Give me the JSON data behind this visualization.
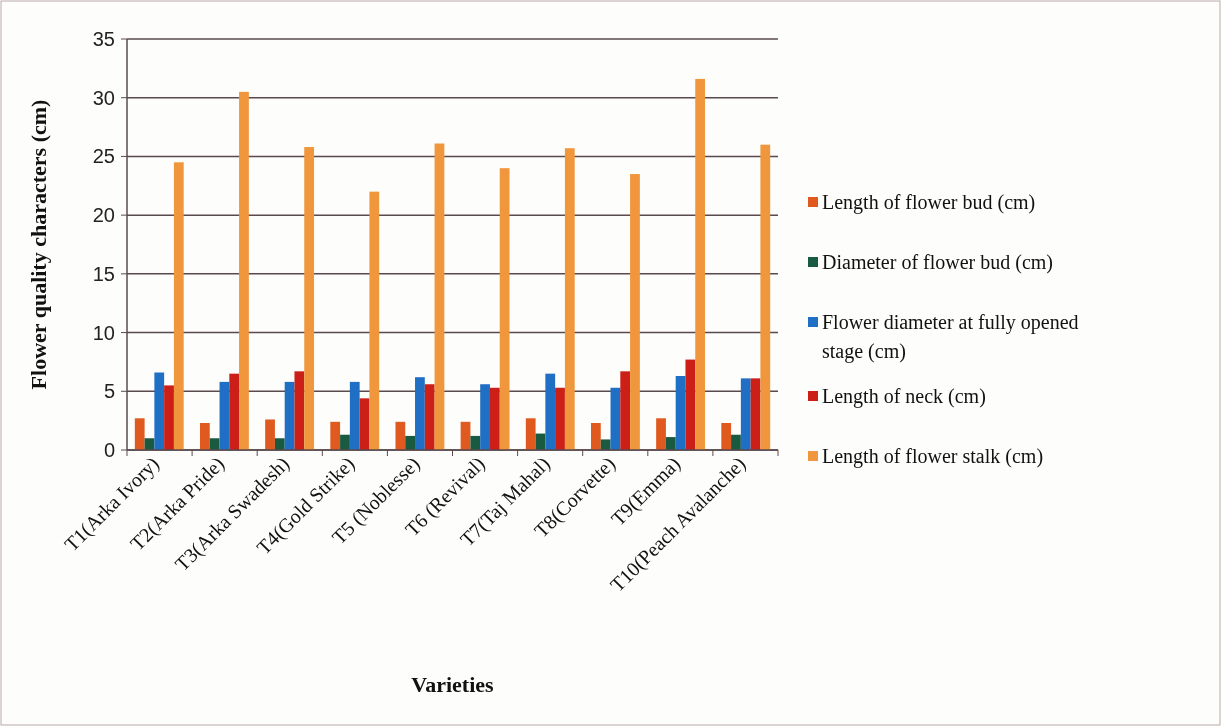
{
  "chart_data": {
    "type": "bar",
    "xlabel": "Varieties",
    "ylabel": "Flower quality characters (cm)",
    "categories": [
      "T1(Arka Ivory)",
      "T2(Arka Pride)",
      "T3(Arka Swadesh)",
      "T4(Gold Strike)",
      "T5 (Noblesse)",
      "T6 (Revival)",
      "T7(Taj Mahal)",
      "T8(Corvette)",
      "T9(Emma)",
      "T10(Peach Avalanche)"
    ],
    "series": [
      {
        "name": "Length of flower bud (cm)",
        "color": "#e05a20",
        "values": [
          2.7,
          2.3,
          2.6,
          2.4,
          2.4,
          2.4,
          2.7,
          2.3,
          2.7,
          2.3
        ]
      },
      {
        "name": "Diameter of flower bud (cm)",
        "color": "#1a5a40",
        "values": [
          1.0,
          1.0,
          1.0,
          1.3,
          1.2,
          1.2,
          1.4,
          0.9,
          1.1,
          1.3
        ]
      },
      {
        "name": "Flower diameter at fully opened stage (cm)",
        "color": "#1f6fc4",
        "values": [
          6.6,
          5.8,
          5.8,
          5.8,
          6.2,
          5.6,
          6.5,
          5.3,
          6.3,
          6.1
        ]
      },
      {
        "name": "Length of neck (cm)",
        "color": "#cc1f18",
        "values": [
          5.5,
          6.5,
          6.7,
          4.4,
          5.6,
          5.3,
          5.3,
          6.7,
          7.7,
          6.1
        ]
      },
      {
        "name": "Length of flower stalk (cm)",
        "color": "#f0963c",
        "values": [
          24.5,
          30.5,
          25.8,
          22.0,
          26.1,
          24.0,
          25.7,
          23.5,
          31.6,
          26.0
        ]
      }
    ],
    "ylim": [
      0,
      35
    ],
    "yticks": [
      0,
      5,
      10,
      15,
      20,
      25,
      30,
      35
    ],
    "grid": "y",
    "legend": "right"
  }
}
